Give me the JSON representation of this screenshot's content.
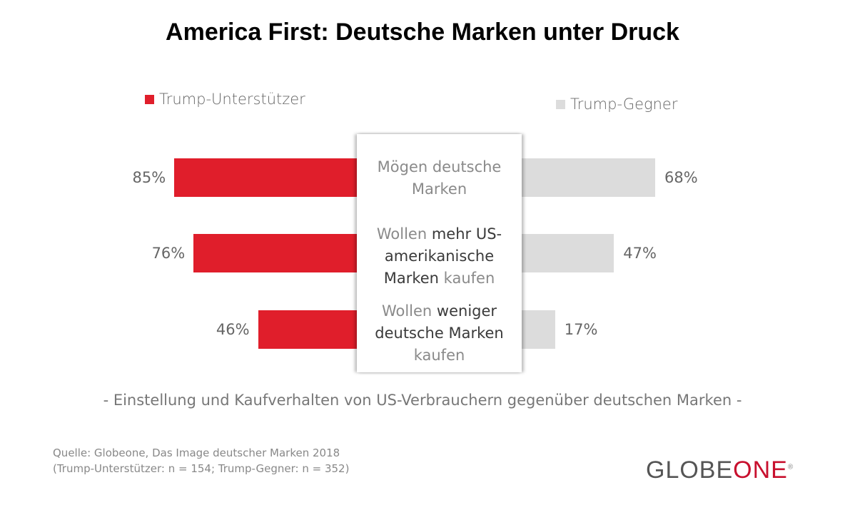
{
  "chart_data": {
    "type": "bar",
    "title": "America First: Deutsche Marken unter Druck",
    "subtitle": "- Einstellung und Kaufverhalten von US-Verbrauchern gegenüber deutschen Marken -",
    "categories": [
      {
        "segments": [
          {
            "text": "Mögen deutsche Marken",
            "bold": false
          }
        ]
      },
      {
        "segments": [
          {
            "text": "Wollen ",
            "bold": false
          },
          {
            "text": "mehr US-amerikanische Marken",
            "bold": true
          },
          {
            "text": " kaufen",
            "bold": false
          }
        ]
      },
      {
        "segments": [
          {
            "text": "Wollen ",
            "bold": false
          },
          {
            "text": "weniger deutsche Marken",
            "bold": true
          },
          {
            "text": " kaufen",
            "bold": false
          }
        ]
      }
    ],
    "series": [
      {
        "name": "Trump-Unterstützer",
        "color": "#e01e2b",
        "values": [
          85,
          76,
          46
        ],
        "labels": [
          "85%",
          "76%",
          "46%"
        ],
        "side": "left"
      },
      {
        "name": "Trump-Gegner",
        "color": "#dcdcdc",
        "values": [
          68,
          47,
          17
        ],
        "labels": [
          "68%",
          "47%",
          "17%"
        ],
        "side": "right"
      }
    ],
    "unit": "%"
  },
  "source": {
    "line1": "Quelle: Globeone, Das Image deutscher Marken 2018",
    "line2": "(Trump-Unterstützer: n = 154; Trump-Gegner: n = 352)"
  },
  "logo": {
    "part1": "GLOBE",
    "part2": "ONE",
    "mark": "®"
  }
}
